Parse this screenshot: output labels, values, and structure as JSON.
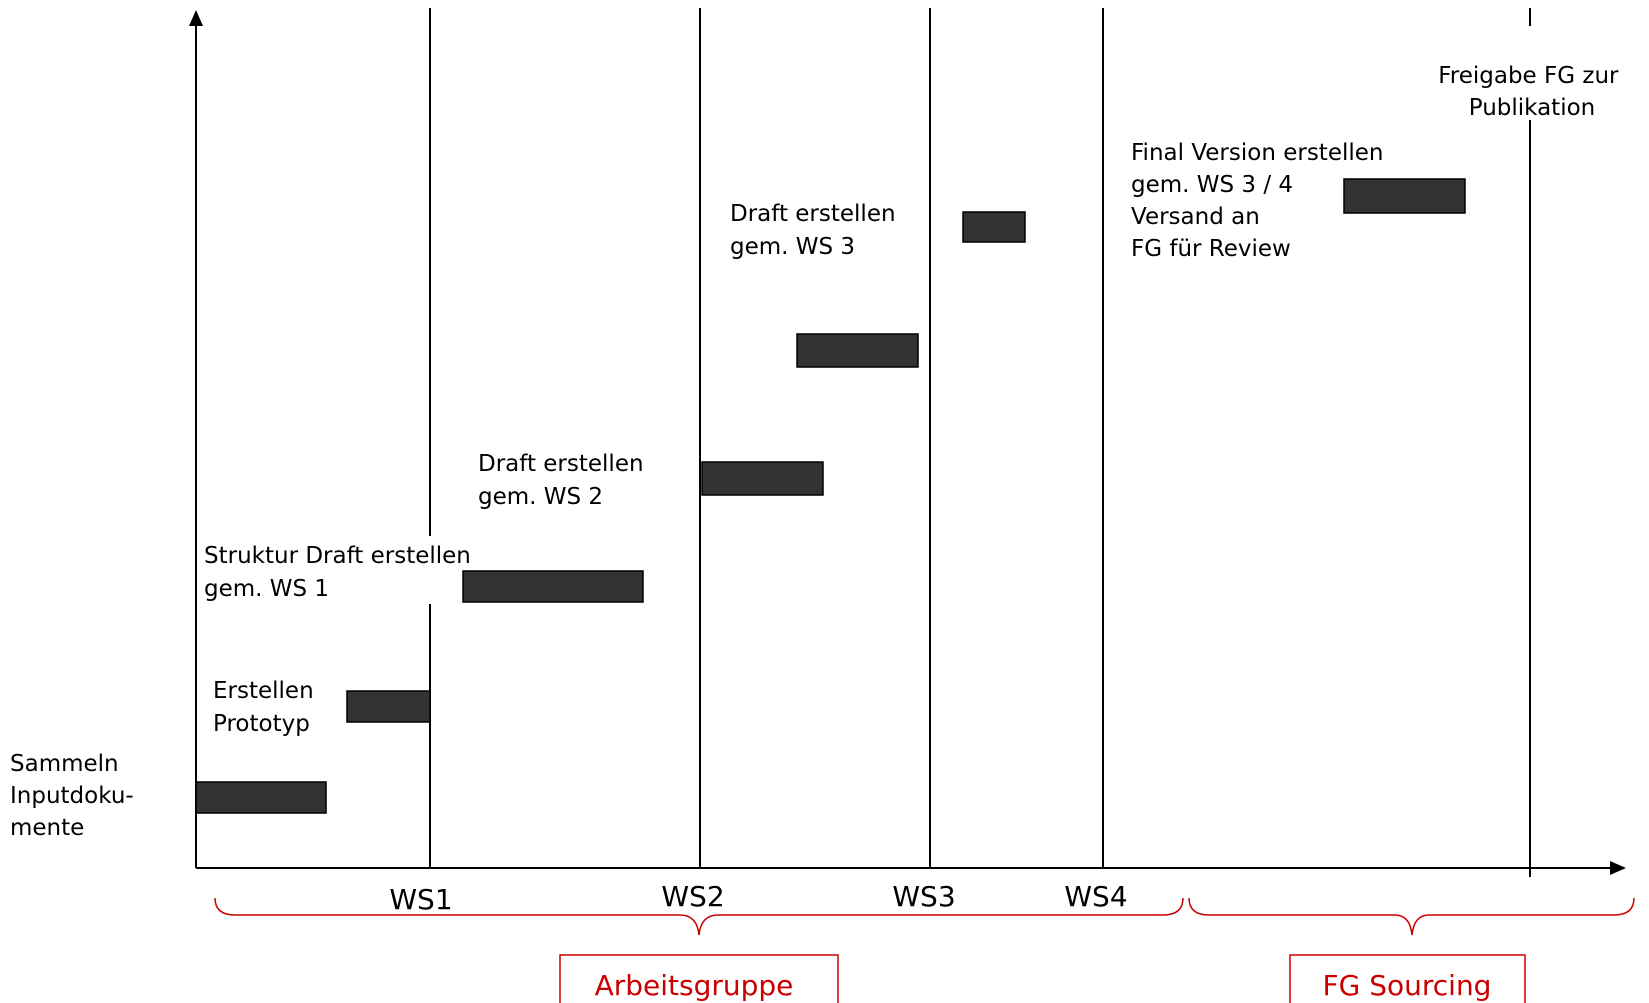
{
  "milestones": [
    "WS1",
    "WS2",
    "WS3",
    "WS4"
  ],
  "tasks": [
    {
      "lines": [
        "Sammeln",
        "Inputdoku-",
        "mente"
      ]
    },
    {
      "lines": [
        "Erstellen",
        "Prototyp"
      ]
    },
    {
      "lines": [
        "Struktur Draft erstellen",
        "gem. WS 1"
      ]
    },
    {
      "lines": [
        "Draft erstellen",
        "gem. WS 2"
      ]
    },
    {
      "lines": []
    },
    {
      "lines": [
        "Draft erstellen",
        "gem. WS 3"
      ]
    },
    {
      "lines": [
        "Final Version erstellen",
        "gem. WS 3 / 4",
        "Versand an",
        "FG für Review"
      ]
    }
  ],
  "release": {
    "lines": [
      "Freigabe FG zur",
      "Publikation"
    ]
  },
  "groups": {
    "arbeitsgruppe": "Arbeitsgruppe",
    "fg_sourcing": "FG Sourcing"
  },
  "colors": {
    "bar_fill": "#333333",
    "group_accent": "#cc0000"
  }
}
